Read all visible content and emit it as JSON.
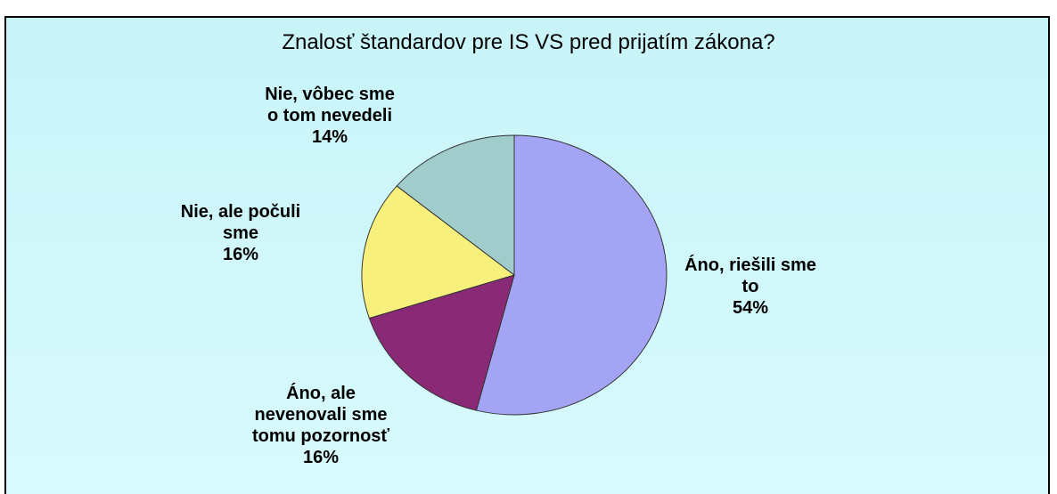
{
  "chart_data": {
    "type": "pie",
    "title": "Znalosť štandardov pre IS VS pred prijatím zákona?",
    "categories": [
      "Áno, riešili sme to",
      "Áno, ale nevenovali sme tomu pozornosť",
      "Nie, ale počuli sme",
      "Nie, vôbec sme o tom nevedeli"
    ],
    "values": [
      54,
      16,
      16,
      14
    ],
    "value_labels": [
      "54%",
      "16%",
      "16%",
      "14%"
    ],
    "colors": [
      "#a4a4f4",
      "#8a2a76",
      "#f8f07c",
      "#a0cccc"
    ]
  }
}
